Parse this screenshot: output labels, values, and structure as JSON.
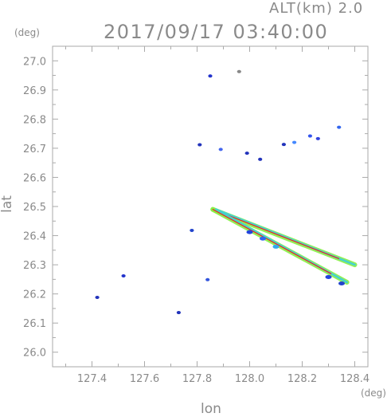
{
  "header": {
    "altitude_label": "ALT(km)  2.0",
    "timestamp": "2017/09/17 03:40:00"
  },
  "chart_data": {
    "type": "scatter",
    "title": "2017/09/17 03:40:00",
    "subtitle": "ALT(km)  2.0",
    "xlabel": "lon",
    "ylabel": "lat",
    "x_unit": "(deg)",
    "y_unit": "(deg)",
    "xlim": [
      127.25,
      128.45
    ],
    "ylim": [
      25.95,
      27.05
    ],
    "x_ticks": [
      "127.4",
      "127.6",
      "127.8",
      "128.0",
      "128.2",
      "128.4"
    ],
    "y_ticks": [
      "26.0",
      "26.1",
      "26.2",
      "26.3",
      "26.4",
      "26.5",
      "26.6",
      "26.7",
      "26.8",
      "26.9",
      "27.0"
    ],
    "grid": false,
    "colors": {
      "axis": "#aaaaaa",
      "blue": "#2244dd",
      "light_blue": "#3399ff",
      "cyan": "#33ccee",
      "green": "#88ee44",
      "red": "#ee2222"
    },
    "echoes": [
      {
        "lon": 127.85,
        "lat": 26.948,
        "color": "#2233cc"
      },
      {
        "lon": 127.96,
        "lat": 26.963,
        "color": "#888888"
      },
      {
        "lon": 128.23,
        "lat": 26.742,
        "color": "#3355ee"
      },
      {
        "lon": 128.26,
        "lat": 26.733,
        "color": "#3344dd"
      },
      {
        "lon": 128.34,
        "lat": 26.772,
        "color": "#3366ee"
      },
      {
        "lon": 128.17,
        "lat": 26.72,
        "color": "#4488ff"
      },
      {
        "lon": 128.13,
        "lat": 26.713,
        "color": "#2233bb"
      },
      {
        "lon": 127.99,
        "lat": 26.683,
        "color": "#2233bb"
      },
      {
        "lon": 128.04,
        "lat": 26.662,
        "color": "#2233bb"
      },
      {
        "lon": 127.81,
        "lat": 26.712,
        "color": "#2233bb"
      },
      {
        "lon": 127.89,
        "lat": 26.696,
        "color": "#4466ee"
      },
      {
        "lon": 127.78,
        "lat": 26.418,
        "color": "#2244cc"
      },
      {
        "lon": 127.52,
        "lat": 26.262,
        "color": "#2233cc"
      },
      {
        "lon": 127.84,
        "lat": 26.249,
        "color": "#3355dd"
      },
      {
        "lon": 127.42,
        "lat": 26.188,
        "color": "#2233bb"
      },
      {
        "lon": 127.73,
        "lat": 26.136,
        "color": "#2233bb"
      }
    ],
    "streaks": [
      {
        "from": [
          127.86,
          26.49
        ],
        "to": [
          128.4,
          26.3
        ],
        "outer_color": "#88ee44",
        "inner_color": "#33ccee",
        "core_color": "#ee2222"
      },
      {
        "from": [
          127.86,
          26.49
        ],
        "to": [
          128.37,
          26.24
        ],
        "outer_color": "#88ee44",
        "inner_color": "#33ccee",
        "core_color": "#ee2222"
      }
    ],
    "lower_streak_echoes": [
      {
        "lon": 128.0,
        "lat": 26.412,
        "color": "#2244dd"
      },
      {
        "lon": 128.05,
        "lat": 26.39,
        "color": "#3366ee"
      },
      {
        "lon": 128.1,
        "lat": 26.362,
        "color": "#33aaee"
      },
      {
        "lon": 128.3,
        "lat": 26.258,
        "color": "#2244dd"
      },
      {
        "lon": 128.35,
        "lat": 26.236,
        "color": "#2244cc"
      }
    ]
  }
}
